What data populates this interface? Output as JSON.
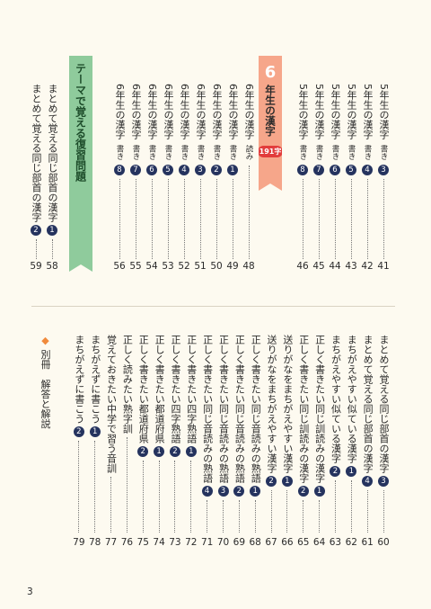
{
  "top": {
    "entries_5": [
      {
        "title": "5年生の漢字",
        "sub": "書き",
        "badge": "3",
        "page": "41"
      },
      {
        "title": "5年生の漢字",
        "sub": "書き",
        "badge": "4",
        "page": "42"
      },
      {
        "title": "5年生の漢字",
        "sub": "書き",
        "badge": "5",
        "page": "43"
      },
      {
        "title": "5年生の漢字",
        "sub": "書き",
        "badge": "6",
        "page": "44"
      },
      {
        "title": "5年生の漢字",
        "sub": "書き",
        "badge": "7",
        "page": "45"
      },
      {
        "title": "5年生の漢字",
        "sub": "書き",
        "badge": "8",
        "page": "46"
      }
    ],
    "banner_6": {
      "grade": "6",
      "label": "年生の漢字",
      "count": "191",
      "count_unit": "字"
    },
    "entries_6": [
      {
        "title": "6年生の漢字",
        "sub": "読み",
        "page": "48"
      },
      {
        "title": "6年生の漢字",
        "sub": "書き",
        "badge": "1",
        "page": "49"
      },
      {
        "title": "6年生の漢字",
        "sub": "書き",
        "badge": "2",
        "page": "50"
      },
      {
        "title": "6年生の漢字",
        "sub": "書き",
        "badge": "3",
        "page": "51"
      },
      {
        "title": "6年生の漢字",
        "sub": "書き",
        "badge": "4",
        "page": "52"
      },
      {
        "title": "6年生の漢字",
        "sub": "書き",
        "badge": "5",
        "page": "53"
      },
      {
        "title": "6年生の漢字",
        "sub": "書き",
        "badge": "6",
        "page": "54"
      },
      {
        "title": "6年生の漢字",
        "sub": "書き",
        "badge": "7",
        "page": "55"
      },
      {
        "title": "6年生の漢字",
        "sub": "書き",
        "badge": "8",
        "page": "56"
      }
    ],
    "banner_theme": {
      "label": "テーマで覚える復習問題"
    },
    "entries_theme": [
      {
        "title": "まとめて覚える同じ部首の漢字",
        "badge": "1",
        "page": "58"
      },
      {
        "title": "まとめて覚える同じ部首の漢字",
        "badge": "2",
        "page": "59"
      }
    ]
  },
  "bottom": {
    "entries": [
      {
        "title": "まとめて覚える同じ部首の漢字",
        "badge": "3",
        "page": "60"
      },
      {
        "title": "まとめて覚える同じ部首の漢字",
        "badge": "4",
        "page": "61"
      },
      {
        "title": "まちがえやすい似ている漢字",
        "badge": "1",
        "page": "62"
      },
      {
        "title": "まちがえやすい似ている漢字",
        "badge": "2",
        "page": "63"
      },
      {
        "title": "正しく書きたい同じ訓読みの漢字",
        "badge": "1",
        "page": "64"
      },
      {
        "title": "正しく書きたい同じ訓読みの漢字",
        "badge": "2",
        "page": "65"
      },
      {
        "title": "送りがなをまちがえやすい漢字",
        "badge": "1",
        "page": "66"
      },
      {
        "title": "送りがなをまちがえやすい漢字",
        "badge": "2",
        "page": "67"
      },
      {
        "title": "正しく書きたい同じ音読みの熟語",
        "badge": "1",
        "page": "68"
      },
      {
        "title": "正しく書きたい同じ音読みの熟語",
        "badge": "2",
        "page": "69"
      },
      {
        "title": "正しく書きたい同じ音読みの熟語",
        "badge": "3",
        "page": "70"
      },
      {
        "title": "正しく書きたい同じ音読みの熟語",
        "badge": "4",
        "page": "71"
      },
      {
        "title": "正しく書きたい四字熟語",
        "badge": "1",
        "page": "72"
      },
      {
        "title": "正しく書きたい四字熟語",
        "badge": "2",
        "page": "73"
      },
      {
        "title": "正しく書きたい都道府県",
        "badge": "1",
        "page": "74"
      },
      {
        "title": "正しく書きたい都道府県",
        "badge": "2",
        "page": "75"
      },
      {
        "title": "正しく読みたい熟字訓",
        "page": "76"
      },
      {
        "title": "覚えておきたい中学で習う音訓",
        "page": "77"
      },
      {
        "title": "まちがえずに書こう",
        "badge": "1",
        "page": "78"
      },
      {
        "title": "まちがえずに書こう",
        "badge": "2",
        "page": "79"
      }
    ],
    "supplement": {
      "label": "別冊　解答と解説"
    }
  },
  "footer": {
    "page_number": "3"
  }
}
